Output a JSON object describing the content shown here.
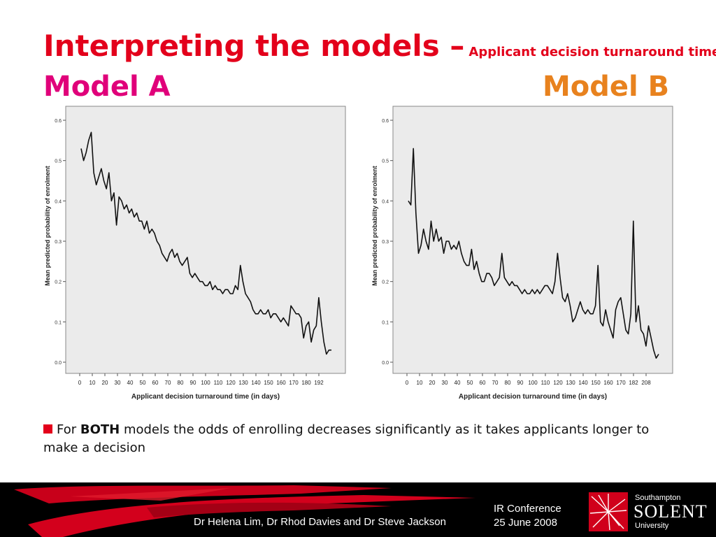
{
  "slide": {
    "title_main": "Interpreting the models –",
    "title_sub": "Applicant decision turnaround time",
    "model_a_label": "Model A",
    "model_b_label": "Model B",
    "bullet_pre": "For ",
    "bullet_bold": "BOTH",
    "bullet_post": " models the odds of enrolling decreases significantly as it takes applicants longer to make a decision"
  },
  "footer": {
    "authors": "Dr Helena Lim, Dr Rhod Davies and Dr Steve Jackson",
    "conference": "IR Conference",
    "date": "25 June 2008",
    "logo_top": "Southampton",
    "logo_mid": "SOLENT",
    "logo_bottom": "University"
  },
  "colors": {
    "title": "#e3001b",
    "model_a": "#e0007a",
    "model_b": "#e8821e",
    "plot_bg": "#ebebeb",
    "footer_bg": "#000000"
  },
  "chart_data": [
    {
      "type": "line",
      "xlabel": "Applicant decision turnaround time (in days)",
      "ylabel": "Mean predicted probability of enrolment",
      "x_ticks": [
        "0",
        "10",
        "20",
        "30",
        "40",
        "50",
        "60",
        "70",
        "80",
        "90",
        "100",
        "110",
        "120",
        "130",
        "140",
        "150",
        "160",
        "170",
        "180",
        "192"
      ],
      "y_ticks": [
        "0.0",
        "0.1",
        "0.2",
        "0.3",
        "0.4",
        "0.5",
        "0.6"
      ],
      "ylim": [
        0,
        0.6
      ],
      "grid": false,
      "x": [
        0,
        2,
        4,
        6,
        8,
        10,
        12,
        14,
        16,
        18,
        20,
        22,
        24,
        26,
        28,
        30,
        32,
        34,
        36,
        38,
        40,
        42,
        44,
        46,
        48,
        50,
        52,
        54,
        56,
        58,
        60,
        62,
        64,
        66,
        68,
        70,
        72,
        74,
        76,
        78,
        80,
        82,
        84,
        86,
        88,
        90,
        92,
        94,
        96,
        98,
        100,
        102,
        104,
        106,
        108,
        110,
        112,
        114,
        116,
        118,
        120,
        122,
        124,
        126,
        128,
        130,
        132,
        134,
        136,
        138,
        140,
        142,
        144,
        146,
        148,
        150,
        152,
        154,
        156,
        158,
        160,
        162,
        164,
        166,
        168,
        170,
        172,
        174,
        176,
        178,
        180,
        182,
        184,
        186,
        188,
        190,
        192,
        194,
        196,
        198
      ],
      "values": [
        0.53,
        0.5,
        0.52,
        0.55,
        0.57,
        0.47,
        0.44,
        0.46,
        0.48,
        0.45,
        0.43,
        0.47,
        0.4,
        0.42,
        0.34,
        0.41,
        0.4,
        0.38,
        0.39,
        0.37,
        0.38,
        0.36,
        0.37,
        0.35,
        0.35,
        0.33,
        0.35,
        0.32,
        0.33,
        0.32,
        0.3,
        0.29,
        0.27,
        0.26,
        0.25,
        0.27,
        0.28,
        0.26,
        0.27,
        0.25,
        0.24,
        0.25,
        0.26,
        0.22,
        0.21,
        0.22,
        0.21,
        0.2,
        0.2,
        0.19,
        0.19,
        0.2,
        0.18,
        0.19,
        0.18,
        0.18,
        0.17,
        0.18,
        0.18,
        0.17,
        0.17,
        0.19,
        0.18,
        0.24,
        0.2,
        0.17,
        0.16,
        0.15,
        0.13,
        0.12,
        0.12,
        0.13,
        0.12,
        0.12,
        0.13,
        0.11,
        0.12,
        0.12,
        0.11,
        0.1,
        0.11,
        0.1,
        0.09,
        0.14,
        0.13,
        0.12,
        0.12,
        0.11,
        0.06,
        0.09,
        0.1,
        0.05,
        0.08,
        0.09,
        0.16,
        0.1,
        0.05,
        0.02,
        0.03,
        0.03
      ]
    },
    {
      "type": "line",
      "xlabel": "Applicant decision turnaround time (in days)",
      "ylabel": "Mean predicted probability of enrolment",
      "x_ticks": [
        "0",
        "10",
        "20",
        "30",
        "40",
        "50",
        "60",
        "70",
        "80",
        "90",
        "100",
        "110",
        "120",
        "130",
        "140",
        "150",
        "160",
        "170",
        "182",
        "208"
      ],
      "y_ticks": [
        "0.0",
        "0.1",
        "0.2",
        "0.3",
        "0.4",
        "0.5",
        "0.6"
      ],
      "ylim": [
        0,
        0.6
      ],
      "grid": false,
      "x": [
        0,
        2,
        4,
        6,
        8,
        10,
        12,
        14,
        16,
        18,
        20,
        22,
        24,
        26,
        28,
        30,
        32,
        34,
        36,
        38,
        40,
        42,
        44,
        46,
        48,
        50,
        52,
        54,
        56,
        58,
        60,
        62,
        64,
        66,
        68,
        70,
        72,
        74,
        76,
        78,
        80,
        82,
        84,
        86,
        88,
        90,
        92,
        94,
        96,
        98,
        100,
        102,
        104,
        106,
        108,
        110,
        112,
        114,
        116,
        118,
        120,
        122,
        124,
        126,
        128,
        130,
        132,
        134,
        136,
        138,
        140,
        142,
        144,
        146,
        148,
        150,
        152,
        154,
        156,
        158,
        160,
        162,
        164,
        166,
        168,
        170,
        172,
        174,
        176,
        178,
        180,
        182,
        184,
        186,
        188,
        190,
        192,
        194,
        196,
        198
      ],
      "values": [
        0.4,
        0.39,
        0.53,
        0.37,
        0.27,
        0.29,
        0.33,
        0.3,
        0.28,
        0.35,
        0.3,
        0.33,
        0.3,
        0.31,
        0.27,
        0.3,
        0.3,
        0.28,
        0.29,
        0.28,
        0.3,
        0.27,
        0.25,
        0.24,
        0.24,
        0.28,
        0.23,
        0.25,
        0.22,
        0.2,
        0.2,
        0.22,
        0.22,
        0.21,
        0.19,
        0.2,
        0.21,
        0.27,
        0.21,
        0.2,
        0.19,
        0.2,
        0.19,
        0.19,
        0.18,
        0.17,
        0.18,
        0.17,
        0.17,
        0.18,
        0.17,
        0.18,
        0.17,
        0.18,
        0.19,
        0.19,
        0.18,
        0.17,
        0.2,
        0.27,
        0.21,
        0.16,
        0.15,
        0.17,
        0.14,
        0.1,
        0.11,
        0.13,
        0.15,
        0.13,
        0.12,
        0.13,
        0.12,
        0.12,
        0.14,
        0.24,
        0.1,
        0.09,
        0.13,
        0.1,
        0.08,
        0.06,
        0.13,
        0.15,
        0.16,
        0.12,
        0.08,
        0.07,
        0.12,
        0.35,
        0.1,
        0.14,
        0.08,
        0.07,
        0.04,
        0.09,
        0.06,
        0.03,
        0.01,
        0.02
      ]
    }
  ]
}
